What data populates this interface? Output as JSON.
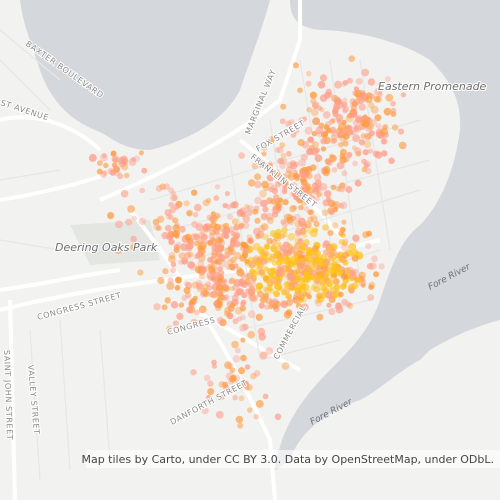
{
  "labels": {
    "eastern_promenade": "Eastern Promenade",
    "deering_oaks_park": "Deering Oaks Park",
    "fore_river_1": "Fore River",
    "fore_river_2": "Fore River",
    "baxter_boulevard": "BAXTER BOULEVARD",
    "forest_avenue": "ST AVENUE",
    "marginal_way": "MARGINAL WAY",
    "fox_street": "FOX STREET",
    "franklin_street": "FRANKLIN STREET",
    "congress_street": "CONGRESS STREET",
    "congress_short": "CONGRESS",
    "commercial": "COMMERCIAL",
    "danforth_street": "DANFORTH STREET",
    "valley_street": "VALLEY STREET",
    "saint_john_street": "SAINT JOHN STREET"
  },
  "attribution": "Map tiles by Carto, under CC BY 3.0. Data by OpenStreetMap, under ODbL."
}
